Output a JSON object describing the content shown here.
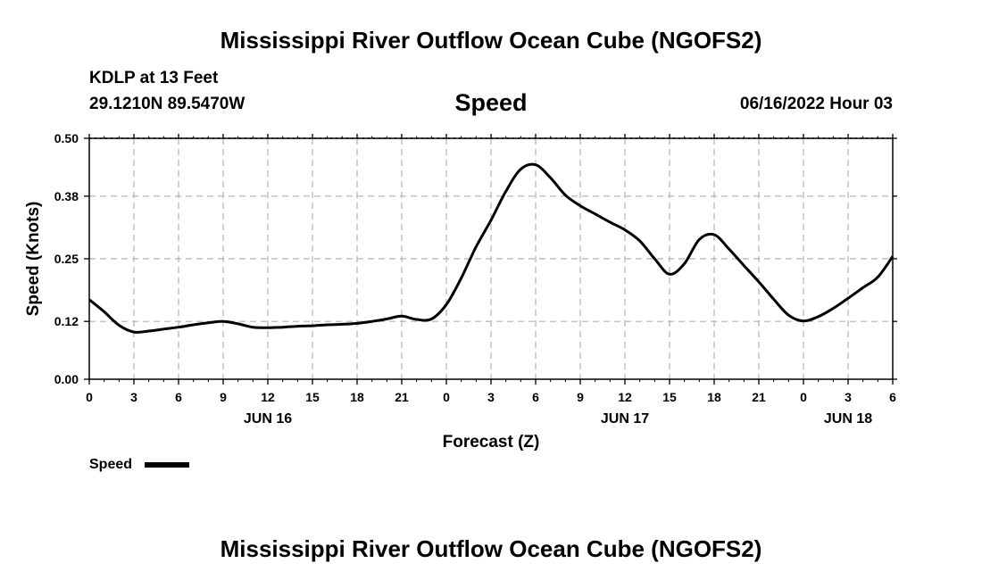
{
  "header": {
    "title": "Mississippi River Outflow Ocean Cube (NGOFS2)",
    "station": "KDLP at 13 Feet",
    "coords": "29.1210N  89.5470W",
    "chart_heading": "Speed",
    "timestamp": "06/16/2022 Hour 03"
  },
  "footer": {
    "title": "Mississippi River Outflow Ocean Cube (NGOFS2)"
  },
  "chart_data": {
    "type": "line",
    "title": "Speed",
    "xlabel": "Forecast (Z)",
    "ylabel": "Speed (Knots)",
    "xlim": [
      0,
      54
    ],
    "ylim": [
      0,
      0.5
    ],
    "yticks": [
      0,
      0.12,
      0.25,
      0.38,
      0.5
    ],
    "ytick_labels": [
      "0.00",
      "0.12",
      "0.25",
      "0.38",
      "0.50"
    ],
    "xticks": [
      0,
      3,
      6,
      9,
      12,
      15,
      18,
      21,
      24,
      27,
      30,
      33,
      36,
      39,
      42,
      45,
      48,
      51,
      54
    ],
    "xtick_labels": [
      "0",
      "3",
      "6",
      "9",
      "12",
      "15",
      "18",
      "21",
      "0",
      "3",
      "6",
      "9",
      "12",
      "15",
      "18",
      "21",
      "0",
      "3",
      "6"
    ],
    "day_labels": [
      {
        "x": 12,
        "label": "JUN 16"
      },
      {
        "x": 36,
        "label": "JUN 17"
      },
      {
        "x": 51,
        "label": "JUN 18"
      }
    ],
    "grid": true,
    "legend": "bottom-left",
    "series": [
      {
        "name": "Speed",
        "color": "#000000",
        "x": [
          0,
          1,
          2,
          3,
          4,
          5,
          6,
          7,
          8,
          9,
          10,
          11,
          12,
          13,
          14,
          15,
          16,
          17,
          18,
          19,
          20,
          21,
          22,
          23,
          24,
          25,
          26,
          27,
          28,
          29,
          30,
          31,
          32,
          33,
          34,
          35,
          36,
          37,
          38,
          39,
          40,
          41,
          42,
          43,
          44,
          45,
          46,
          47,
          48,
          49,
          50,
          51,
          52,
          53,
          54
        ],
        "values": [
          0.165,
          0.14,
          0.112,
          0.098,
          0.1,
          0.104,
          0.108,
          0.113,
          0.117,
          0.12,
          0.115,
          0.108,
          0.107,
          0.108,
          0.11,
          0.111,
          0.113,
          0.114,
          0.116,
          0.12,
          0.125,
          0.131,
          0.124,
          0.125,
          0.155,
          0.21,
          0.275,
          0.33,
          0.39,
          0.436,
          0.445,
          0.418,
          0.382,
          0.36,
          0.343,
          0.326,
          0.31,
          0.287,
          0.25,
          0.218,
          0.24,
          0.29,
          0.3,
          0.27,
          0.236,
          0.202,
          0.166,
          0.133,
          0.121,
          0.13,
          0.147,
          0.168,
          0.19,
          0.212,
          0.255
        ]
      }
    ]
  }
}
